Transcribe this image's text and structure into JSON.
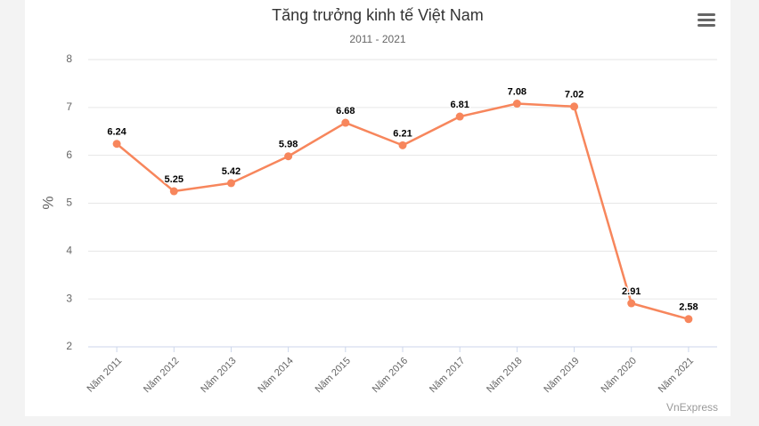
{
  "chart_data": {
    "type": "line",
    "title": "Tăng trưởng kinh tế Việt Nam",
    "subtitle": "2011 - 2021",
    "y_label": "%",
    "credits": "VnExpress",
    "categories": [
      "Năm 2011",
      "Năm 2012",
      "Năm 2013",
      "Năm 2014",
      "Năm 2015",
      "Năm 2016",
      "Năm 2017",
      "Năm 2018",
      "Năm 2019",
      "Năm 2020",
      "Năm 2021"
    ],
    "values": [
      6.24,
      5.25,
      5.42,
      5.98,
      6.68,
      6.21,
      6.81,
      7.08,
      7.02,
      2.91,
      2.58
    ],
    "color": "#f7865c",
    "ylim": [
      2,
      8
    ],
    "yticks": [
      2,
      3,
      4,
      5,
      6,
      7,
      8
    ],
    "grid": true
  }
}
